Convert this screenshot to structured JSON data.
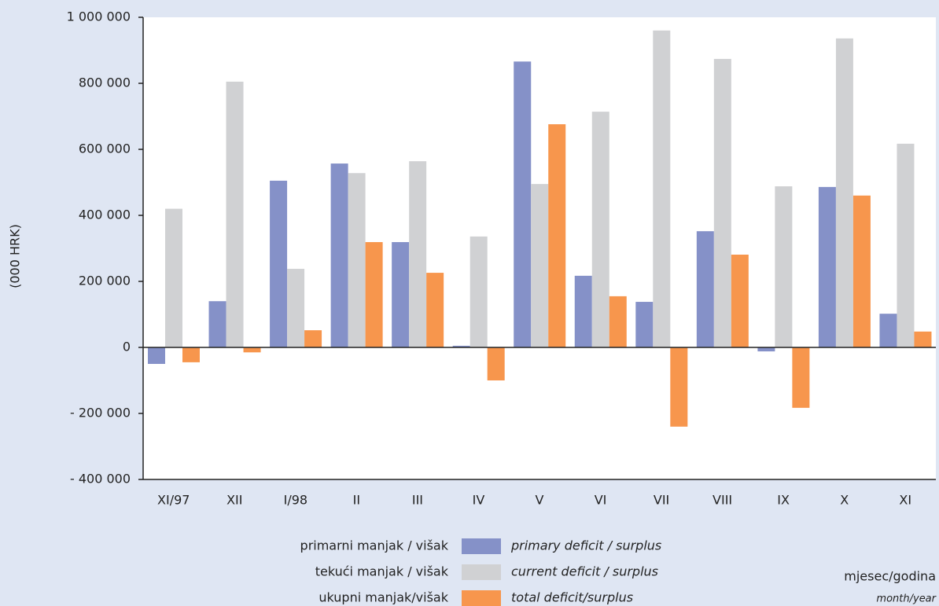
{
  "chart_data": {
    "type": "bar",
    "categories": [
      "XI/97",
      "XII",
      "I/98",
      "II",
      "III",
      "IV",
      "V",
      "VI",
      "VII",
      "VIII",
      "IX",
      "X",
      "XI"
    ],
    "series": [
      {
        "name": "primarni manjak / višak",
        "name_en": "primary deficit / surplus",
        "color": "#8591c8",
        "values": [
          -50000,
          140000,
          505000,
          557000,
          319000,
          5000,
          866000,
          217000,
          138000,
          352000,
          -12000,
          486000,
          102000
        ]
      },
      {
        "name": "tekući manjak / višak",
        "name_en": "current deficit / surplus",
        "color": "#d0d1d3",
        "values": [
          420000,
          805000,
          238000,
          528000,
          564000,
          336000,
          495000,
          714000,
          960000,
          874000,
          488000,
          936000,
          617000
        ]
      },
      {
        "name": "ukupni manjak/višak",
        "name_en": "total deficit/surplus",
        "color": "#f7964d",
        "values": [
          -45000,
          -15000,
          52000,
          319000,
          226000,
          -100000,
          676000,
          155000,
          -240000,
          281000,
          -183000,
          460000,
          48000
        ]
      }
    ],
    "y_label": "(000 HRK)",
    "x_label": "mjesec/godina",
    "x_label_en": "month/year",
    "ylim": [
      -400000,
      1000000
    ],
    "yticks": [
      {
        "value": -400000,
        "label": "- 400 000"
      },
      {
        "value": -200000,
        "label": "- 200 000"
      },
      0,
      {
        "value": 200000,
        "label": "200 000"
      },
      {
        "value": 400000,
        "label": "400 000"
      },
      {
        "value": 600000,
        "label": "600 000"
      },
      {
        "value": 800000,
        "label": "800 000"
      },
      {
        "value": 1000000,
        "label": "1 000 000"
      }
    ],
    "zero_line": true
  }
}
